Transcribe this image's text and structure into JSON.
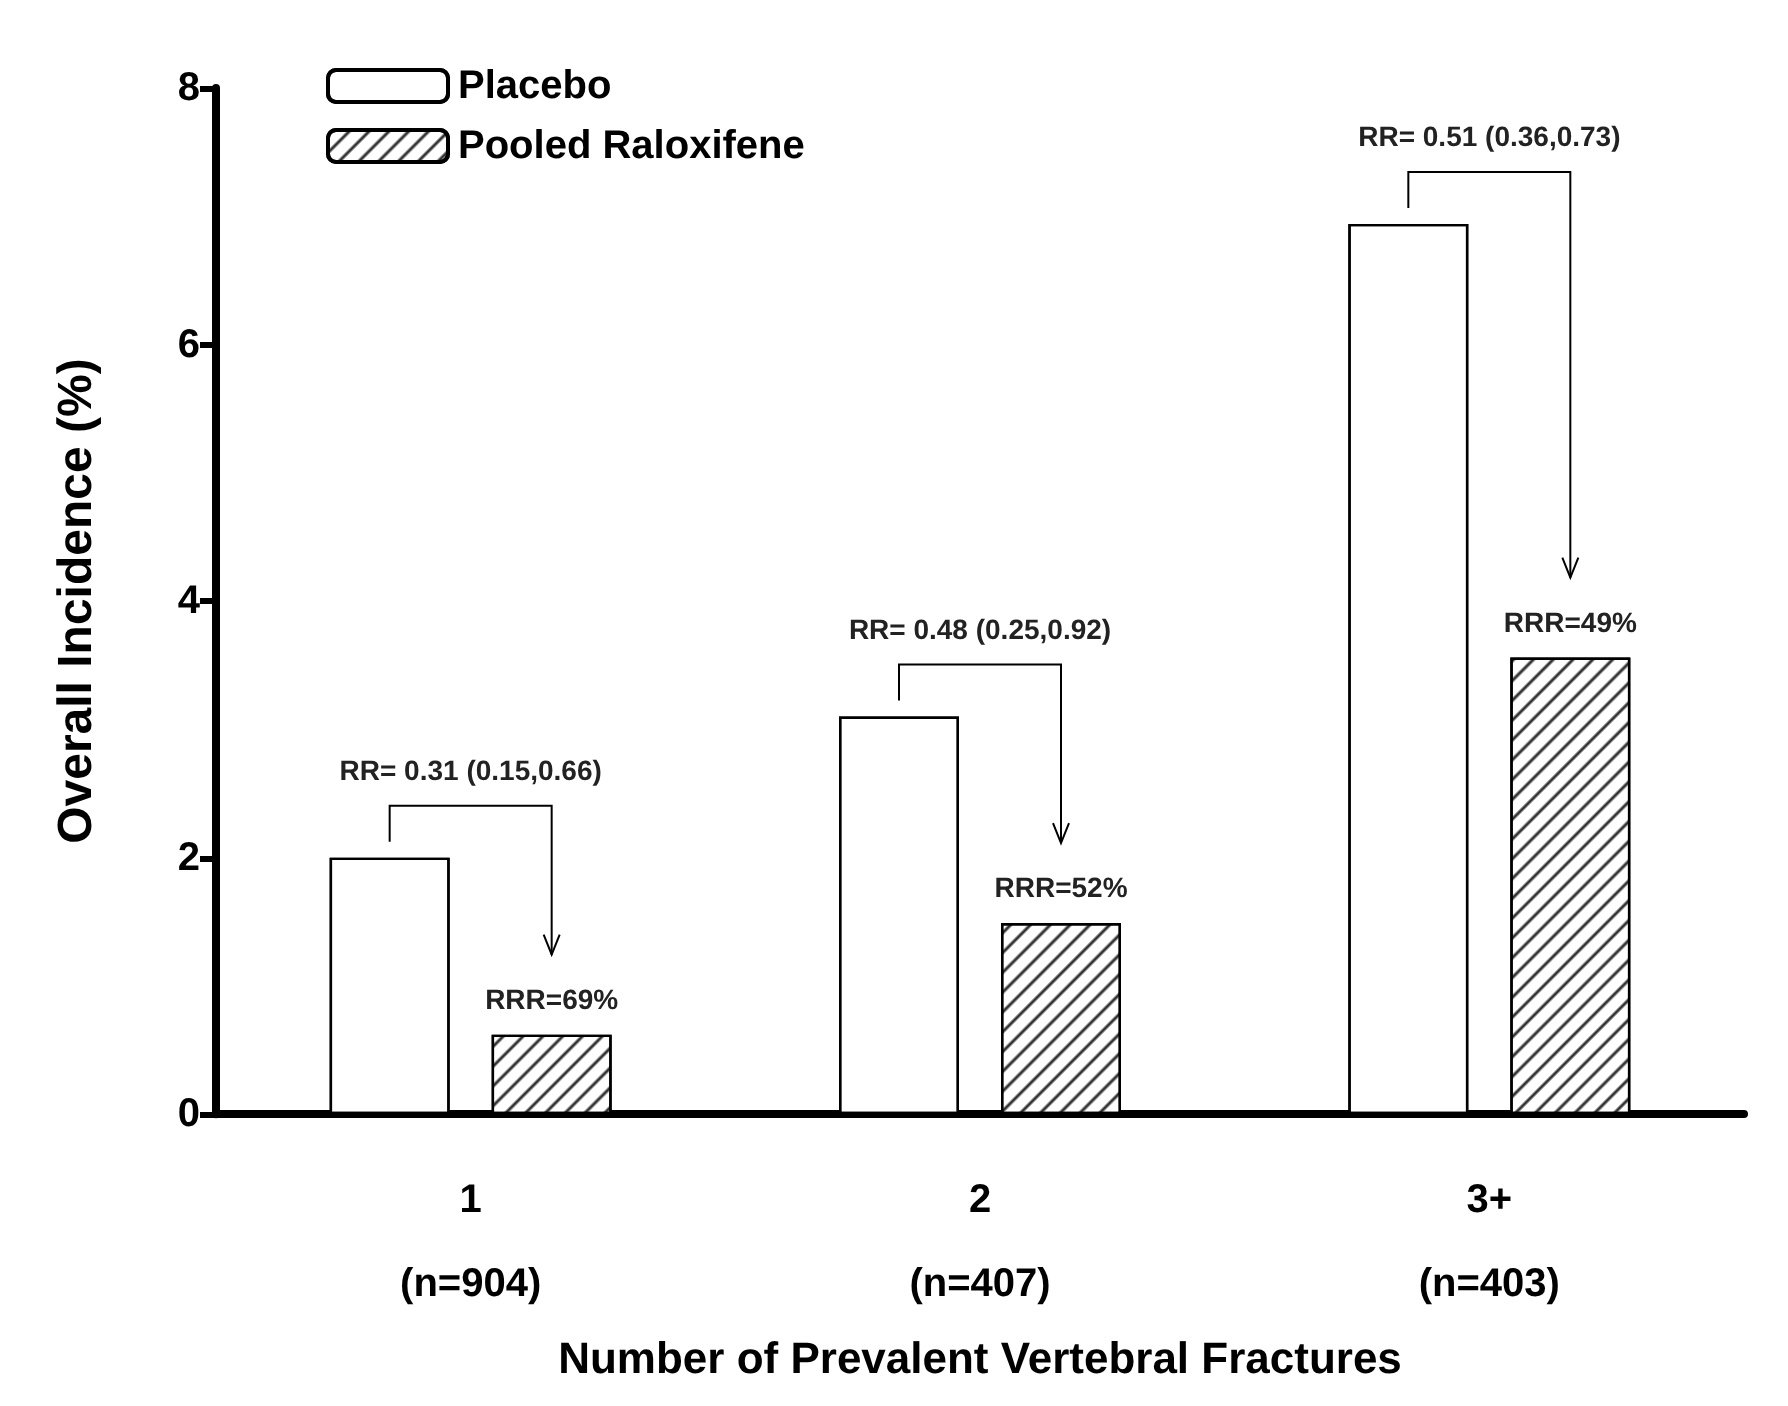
{
  "chart_data": {
    "type": "bar",
    "xlabel": "Number of Prevalent Vertebral Fractures",
    "ylabel": "Overall Incidence (%)",
    "categories": [
      "1\n(n=904)",
      "2\n(n=407)",
      "3+\n(n=403)"
    ],
    "series": [
      {
        "name": "Placebo",
        "color": "#ffffff",
        "values": [
          2.0,
          3.1,
          6.94
        ]
      },
      {
        "name": "Pooled Raloxifene",
        "color": "#000000",
        "values": [
          0.62,
          1.49,
          3.56
        ]
      }
    ],
    "ylim": [
      0,
      8
    ],
    "yticks": [
      0,
      2,
      4,
      6,
      8
    ],
    "grid": false,
    "legend": "top left",
    "annotations": [
      "RR= 0.31 (0.15,0.66)",
      "RR= 0.48 (0.25,0.92)",
      "RR= 0.51 (0.36,0.73)",
      "RRR=69%",
      "RRR=52%",
      "RRR=49%"
    ]
  }
}
